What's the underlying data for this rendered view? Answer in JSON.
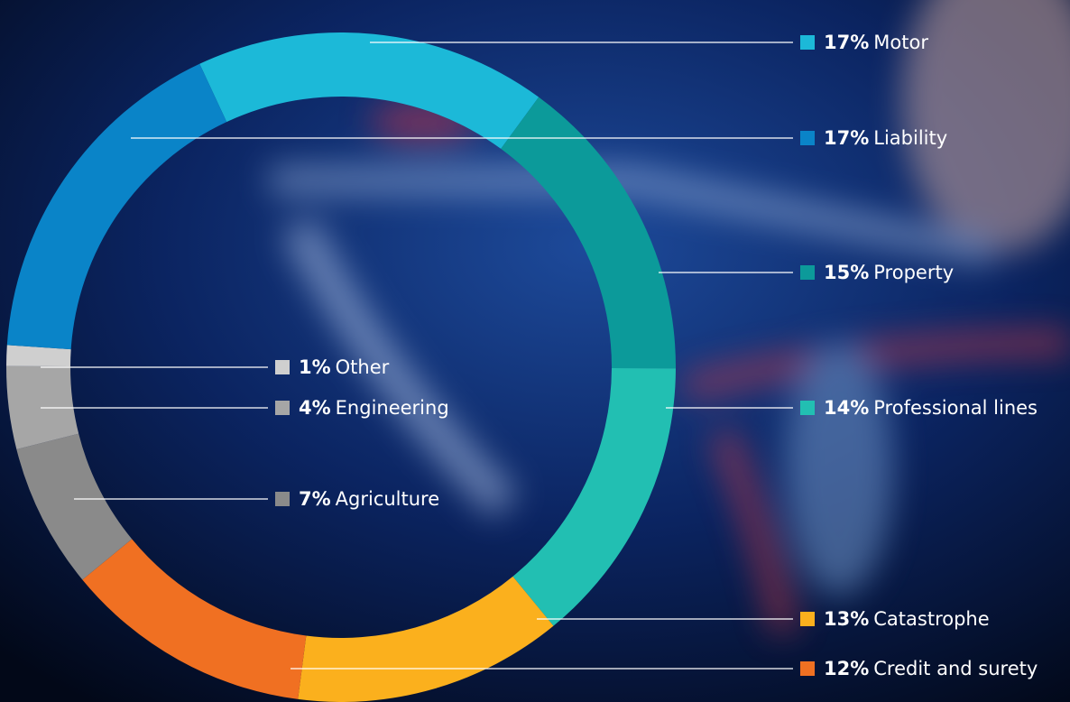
{
  "chart_data": {
    "type": "donut",
    "categories": [
      "Motor",
      "Property",
      "Professional lines",
      "Catastrophe",
      "Credit and surety",
      "Agriculture",
      "Engineering",
      "Other",
      "Liability"
    ],
    "values": [
      17,
      15,
      14,
      13,
      12,
      7,
      4,
      1,
      17
    ],
    "value_labels": [
      "17%",
      "15%",
      "14%",
      "13%",
      "12%",
      "7%",
      "4%",
      "1%",
      "17%"
    ],
    "colors": [
      "#1cb9d8",
      "#0c9a9a",
      "#22bfb2",
      "#fbb01d",
      "#f07022",
      "#8a8a8a",
      "#a6a6a6",
      "#cfcfcf",
      "#0a84c8"
    ]
  }
}
